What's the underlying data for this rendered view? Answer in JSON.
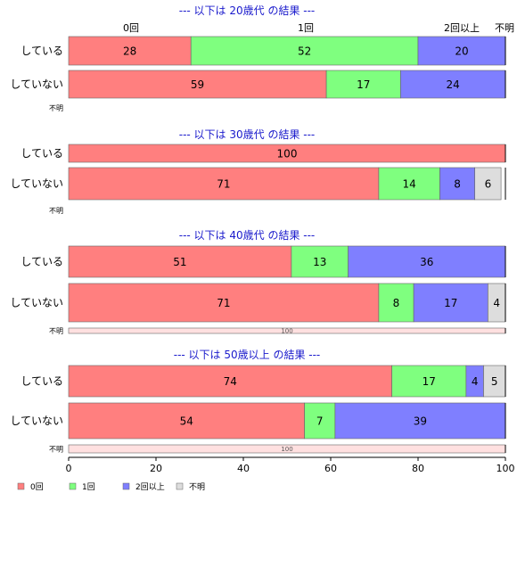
{
  "chart_data": {
    "type": "bar",
    "orientation": "horizontal",
    "stacked": true,
    "xlim": [
      0,
      100
    ],
    "x_ticks": [
      0,
      20,
      40,
      60,
      80,
      100
    ],
    "grid": false,
    "legend_placement": "bottom-left",
    "categories": [
      "0回",
      "1回",
      "2回以上",
      "不明"
    ],
    "colors": {
      "0回": "#ff7f7f",
      "1回": "#7fff7f",
      "2回以上": "#7f7fff",
      "不明": "#dddddd",
      "不明_row": "#ffe0e0",
      "title": "#1a1acc"
    },
    "top_labels": [
      "0回",
      "1回",
      "2回以上",
      "不明"
    ],
    "legend": [
      "0回",
      "1回",
      "2回以上",
      "不明"
    ],
    "groups": [
      {
        "title": "--- 以下は 20歳代 の結果 ---",
        "rows": [
          {
            "label": "している",
            "values": [
              28,
              52,
              20,
              0
            ]
          },
          {
            "label": "していない",
            "values": [
              59,
              17,
              24,
              0
            ]
          },
          {
            "label": "不明",
            "values": []
          }
        ]
      },
      {
        "title": "--- 以下は 30歳代 の結果 ---",
        "rows": [
          {
            "label": "している",
            "values": [
              100,
              0,
              0,
              0
            ]
          },
          {
            "label": "していない",
            "values": [
              71,
              14,
              8,
              6
            ]
          },
          {
            "label": "不明",
            "values": []
          }
        ]
      },
      {
        "title": "--- 以下は 40歳代 の結果 ---",
        "rows": [
          {
            "label": "している",
            "values": [
              51,
              13,
              36,
              0
            ]
          },
          {
            "label": "していない",
            "values": [
              71,
              8,
              17,
              4
            ]
          },
          {
            "label": "不明",
            "values": [
              0,
              0,
              0,
              100
            ]
          }
        ]
      },
      {
        "title": "--- 以下は 50歳以上 の結果 ---",
        "rows": [
          {
            "label": "している",
            "values": [
              74,
              17,
              4,
              5
            ]
          },
          {
            "label": "していない",
            "values": [
              54,
              7,
              39,
              0
            ]
          },
          {
            "label": "不明",
            "values": [
              0,
              0,
              0,
              100
            ]
          }
        ]
      }
    ]
  }
}
